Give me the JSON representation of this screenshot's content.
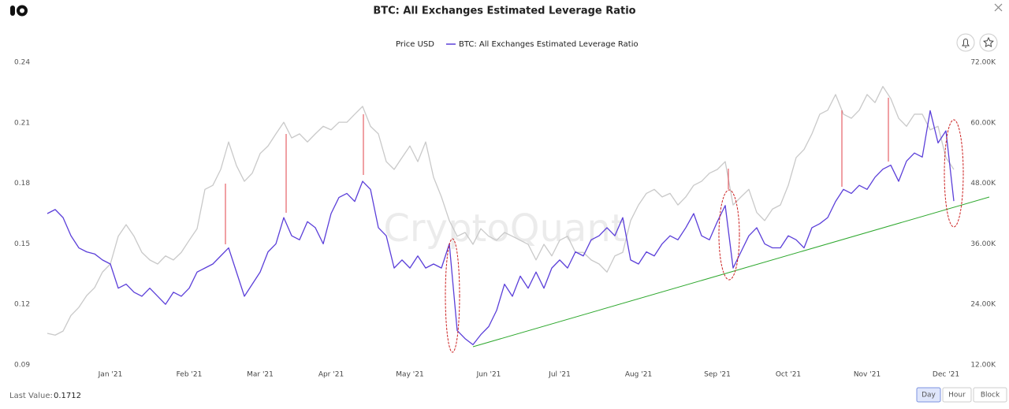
{
  "chart_data": {
    "type": "line",
    "title": "BTC: All Exchanges Estimated Leverage Ratio",
    "watermark": "CryptoQuant",
    "categories": [
      null,
      null,
      null,
      null,
      null,
      null,
      null,
      null,
      "Jan '21",
      null,
      null,
      null,
      null,
      null,
      null,
      null,
      null,
      null,
      "Feb '21",
      null,
      null,
      null,
      null,
      null,
      null,
      null,
      null,
      "Mar '21",
      null,
      null,
      null,
      null,
      null,
      null,
      null,
      null,
      "Apr '21",
      null,
      null,
      null,
      null,
      null,
      null,
      null,
      null,
      null,
      "May '21",
      null,
      null,
      null,
      null,
      null,
      null,
      null,
      null,
      null,
      "Jun '21",
      null,
      null,
      null,
      null,
      null,
      null,
      null,
      null,
      "Jul '21",
      null,
      null,
      null,
      null,
      null,
      null,
      null,
      null,
      null,
      "Aug '21",
      null,
      null,
      null,
      null,
      null,
      null,
      null,
      null,
      null,
      "Sep '21",
      null,
      null,
      null,
      null,
      null,
      null,
      null,
      null,
      "Oct '21",
      null,
      null,
      null,
      null,
      null,
      null,
      null,
      null,
      null,
      "Nov '21",
      null,
      null,
      null,
      null,
      null,
      null,
      null,
      null,
      null,
      "Dec '21",
      null
    ],
    "series": [
      {
        "name": "Price USD",
        "color": "#c9c9c9",
        "axis": "y2",
        "values": [
          18250,
          17900,
          18700,
          21800,
          23400,
          25750,
          27300,
          30400,
          32000,
          37500,
          39800,
          37500,
          34300,
          32800,
          32000,
          33600,
          32800,
          34300,
          36700,
          39000,
          46800,
          47600,
          50750,
          56200,
          51500,
          48400,
          50000,
          53900,
          55400,
          57800,
          60100,
          57000,
          57800,
          56200,
          57800,
          59300,
          58600,
          60100,
          60100,
          61700,
          63250,
          59300,
          57800,
          52300,
          50750,
          53100,
          55400,
          52300,
          56200,
          49200,
          45300,
          40600,
          37500,
          38250,
          35900,
          39000,
          37500,
          36700,
          38250,
          37500,
          36700,
          35900,
          32800,
          35900,
          33600,
          36700,
          37500,
          34300,
          34300,
          32800,
          32000,
          30400,
          33600,
          34300,
          40600,
          43700,
          46000,
          46800,
          45300,
          46000,
          43700,
          45300,
          47600,
          48400,
          50000,
          50750,
          52300,
          43700,
          45300,
          46800,
          42200,
          40600,
          42900,
          43700,
          47600,
          53100,
          54700,
          57800,
          61700,
          62500,
          65600,
          61700,
          60900,
          62500,
          65600,
          64000,
          67200,
          64800,
          60900,
          59300,
          61700,
          61700,
          58600,
          59300,
          53100,
          50750
        ]
      },
      {
        "name": "BTC: All Exchanges Estimated Leverage Ratio",
        "color": "#5b3fd9",
        "values": [
          0.165,
          0.167,
          0.163,
          0.154,
          0.148,
          0.146,
          0.145,
          0.142,
          0.14,
          0.128,
          0.13,
          0.126,
          0.124,
          0.128,
          0.124,
          0.12,
          0.126,
          0.124,
          0.128,
          0.136,
          0.138,
          0.14,
          0.144,
          0.148,
          0.136,
          0.124,
          0.13,
          0.136,
          0.146,
          0.15,
          0.163,
          0.154,
          0.152,
          0.161,
          0.158,
          0.15,
          0.165,
          0.173,
          0.175,
          0.171,
          0.181,
          0.177,
          0.158,
          0.154,
          0.138,
          0.142,
          0.138,
          0.144,
          0.138,
          0.14,
          0.138,
          0.15,
          0.107,
          0.103,
          0.1,
          0.105,
          0.109,
          0.117,
          0.13,
          0.124,
          0.134,
          0.128,
          0.136,
          0.128,
          0.138,
          0.142,
          0.138,
          0.146,
          0.144,
          0.152,
          0.154,
          0.158,
          0.154,
          0.163,
          0.142,
          0.14,
          0.146,
          0.144,
          0.15,
          0.154,
          0.152,
          0.158,
          0.165,
          0.154,
          0.152,
          0.161,
          0.169,
          0.138,
          0.146,
          0.154,
          0.158,
          0.15,
          0.148,
          0.148,
          0.154,
          0.152,
          0.148,
          0.158,
          0.16,
          0.163,
          0.171,
          0.177,
          0.175,
          0.179,
          0.177,
          0.183,
          0.187,
          0.189,
          0.181,
          0.191,
          0.195,
          0.193,
          0.216,
          0.2,
          0.206,
          0.1712
        ]
      }
    ],
    "ylim": [
      0.09,
      0.24
    ],
    "yticks": [
      0.09,
      0.12,
      0.15,
      0.18,
      0.21,
      0.24
    ],
    "y2lim": [
      12000,
      72000
    ],
    "y2ticks": [
      {
        "value": 12000,
        "label": "12.00K"
      },
      {
        "value": 24000,
        "label": "24.00K"
      },
      {
        "value": 36000,
        "label": "36.00K"
      },
      {
        "value": 48000,
        "label": "48.00K"
      },
      {
        "value": 60000,
        "label": "60.00K"
      },
      {
        "value": 72000,
        "label": "72.00K"
      }
    ],
    "grid": false
  },
  "footer": {
    "last_value_label": "Last Value:",
    "last_value": 0.1712,
    "resolutions": [
      "Day",
      "Hour",
      "Block"
    ],
    "active_resolution": "Day"
  }
}
